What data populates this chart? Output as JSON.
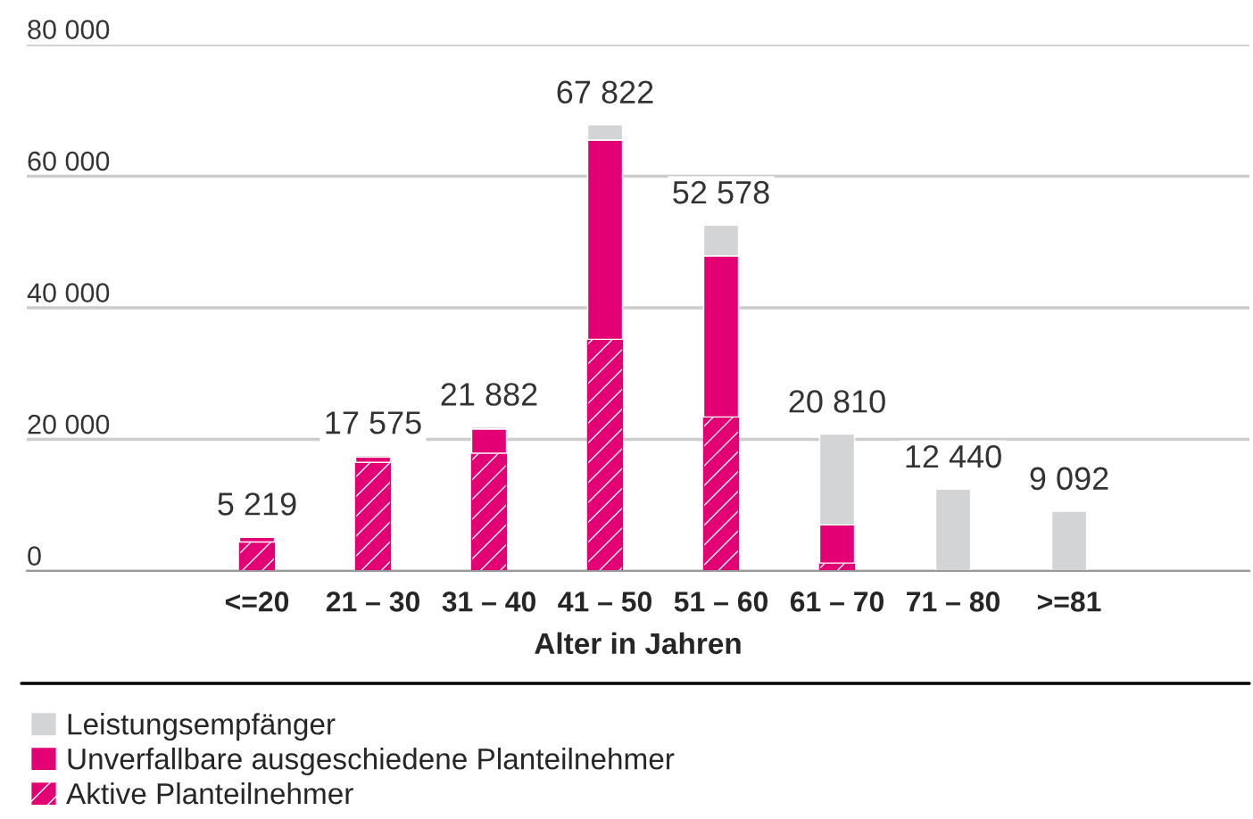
{
  "chart_data": {
    "type": "bar",
    "stacked": true,
    "xlabel": "Alter in Jahren",
    "categories": [
      "<=20",
      "21 – 30",
      "31 – 40",
      "41 – 50",
      "51 – 60",
      "61 – 70",
      "71 – 80",
      ">=81"
    ],
    "series": [
      {
        "name": "Aktive Planteilnehmer",
        "color": "#e20074",
        "values": [
          4400,
          16500,
          17900,
          35200,
          23400,
          1200,
          0,
          0
        ]
      },
      {
        "name": "Unverfallbare ausgeschiedene Planteilnehmer",
        "color": "#e20074",
        "values": [
          700,
          800,
          3700,
          30300,
          24500,
          5800,
          0,
          0
        ]
      },
      {
        "name": "Leistungsempfänger",
        "color": "#d3d4d6",
        "values": [
          119,
          275,
          282,
          2322,
          4678,
          13810,
          12440,
          9092
        ]
      }
    ],
    "totals": [
      "5 219",
      "17 575",
      "21 882",
      "67 822",
      "52 578",
      "20 810",
      "12 440",
      "9 092"
    ],
    "ylim": [
      0,
      80000
    ],
    "yticks": [
      {
        "value": 0,
        "label": "0"
      },
      {
        "value": 20000,
        "label": "20 000"
      },
      {
        "value": 40000,
        "label": "40 000"
      },
      {
        "value": 60000,
        "label": "60 000"
      },
      {
        "value": 80000,
        "label": "80 000"
      }
    ],
    "grid": "y",
    "legend": "bottom left"
  }
}
